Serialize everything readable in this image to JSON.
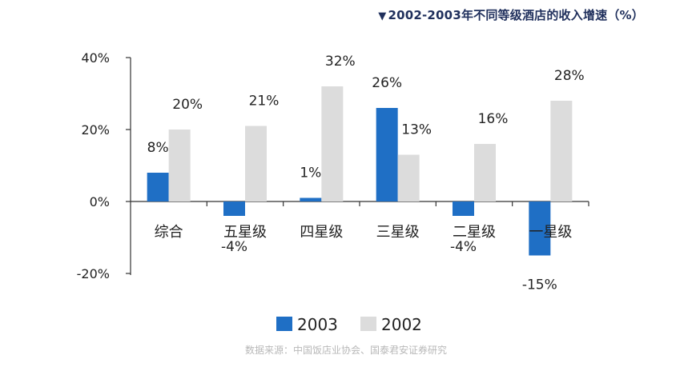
{
  "title": "2002-2003年不同等级酒店的收入增速（%）",
  "source": "数据来源：中国饭店业协会、国泰君安证券研究",
  "chart_data": {
    "type": "bar",
    "title": "2002-2003年不同等级酒店的收入增速（%）",
    "categories": [
      "综合",
      "五星级",
      "四星级",
      "三星级",
      "二星级",
      "一星级"
    ],
    "series": [
      {
        "name": "2003",
        "values": [
          8,
          -4,
          1,
          26,
          -4,
          -15
        ],
        "labels": [
          "8%",
          "-4%",
          "1%",
          "26%",
          "-4%",
          "-15%"
        ],
        "color": "#1f6fc5"
      },
      {
        "name": "2002",
        "values": [
          20,
          21,
          32,
          13,
          16,
          28
        ],
        "labels": [
          "20%",
          "21%",
          "32%",
          "13%",
          "16%",
          "28%"
        ],
        "color": "#dcdcdc"
      }
    ],
    "yticks": [
      {
        "value": 40,
        "label": "40%"
      },
      {
        "value": 20,
        "label": "20%"
      },
      {
        "value": 0,
        "label": "0%"
      },
      {
        "value": -20,
        "label": "-20%"
      }
    ],
    "ylim": [
      -20,
      40
    ],
    "grid": false,
    "legend": "bottom-center"
  }
}
